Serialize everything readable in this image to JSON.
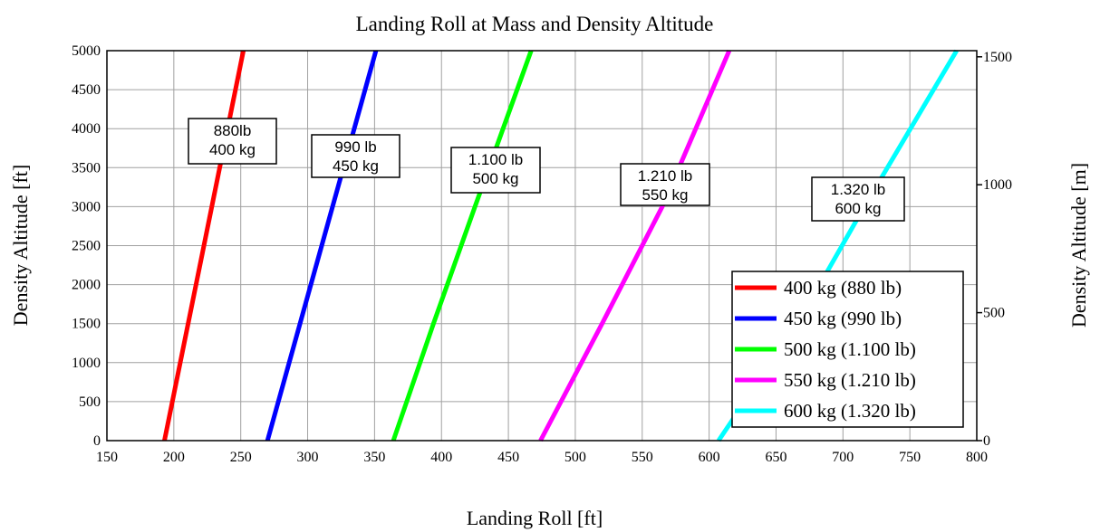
{
  "chart_data": {
    "type": "line",
    "title": "Landing Roll at Mass and Density Altitude",
    "xlabel": "Landing Roll [ft]",
    "ylabel": "Density Altitude [ft]",
    "y2label": "Density Altitude [m]",
    "xlim": [
      150,
      800
    ],
    "ylim": [
      0,
      5000
    ],
    "y2lim": [
      0,
      1524
    ],
    "x_ticks": [
      "150",
      "200",
      "250",
      "300",
      "350",
      "400",
      "450",
      "500",
      "550",
      "600",
      "650",
      "700",
      "750",
      "800"
    ],
    "y_ticks": [
      "0",
      "500",
      "1000",
      "1500",
      "2000",
      "2500",
      "3000",
      "3500",
      "4000",
      "4500",
      "5000"
    ],
    "y2_ticks": [
      "0",
      "500",
      "1000",
      "1500"
    ],
    "grid": true,
    "legend_position": "bottom-right",
    "series": [
      {
        "name": "400 kg (880 lb)",
        "color": "#ff0000",
        "points": [
          [
            193,
            0
          ],
          [
            252,
            5000
          ]
        ],
        "label_lines": [
          "880lb",
          "400 kg"
        ]
      },
      {
        "name": "450 kg (990 lb)",
        "color": "#0000ff",
        "points": [
          [
            270,
            0
          ],
          [
            351,
            5000
          ]
        ],
        "label_lines": [
          "990 lb",
          "450 kg"
        ]
      },
      {
        "name": "500 kg (1.100 lb)",
        "color": "#00ff00",
        "points": [
          [
            364,
            0
          ],
          [
            394,
            1500
          ],
          [
            425,
            3000
          ],
          [
            467,
            5000
          ]
        ],
        "label_lines": [
          "1.100 lb",
          "500 kg"
        ]
      },
      {
        "name": "550 kg (1.210 lb)",
        "color": "#ff00ff",
        "points": [
          [
            474,
            0
          ],
          [
            520,
            1500
          ],
          [
            565,
            3000
          ],
          [
            615,
            5000
          ]
        ],
        "label_lines": [
          "1.210 lb",
          "550 kg"
        ]
      },
      {
        "name": "600 kg (1.320 lb)",
        "color": "#00ffff",
        "points": [
          [
            607,
            0
          ],
          [
            666,
            1500
          ],
          [
            716,
            3000
          ],
          [
            785,
            5000
          ]
        ],
        "label_lines": [
          "1.320 lb",
          "600 kg"
        ]
      }
    ]
  }
}
